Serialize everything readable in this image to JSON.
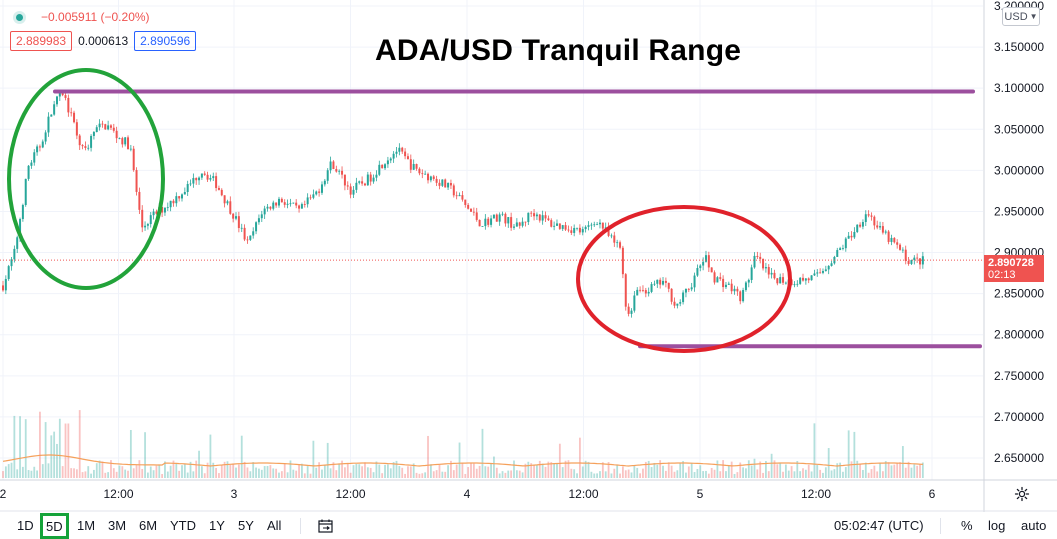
{
  "title": "ADA/USD Tranquil Range",
  "legend": {
    "change": "−0.005911 (−0.20%)",
    "sell": "2.889983",
    "spread": "0.000613",
    "buy": "2.890596"
  },
  "currency": "USD",
  "last_price": {
    "value": "2.890728",
    "countdown": "02:13"
  },
  "colors": {
    "up": "#26a69a",
    "down": "#ef5350",
    "range_line": "#9c4f9e",
    "green_circle": "#22a33a",
    "red_circle": "#e0222b",
    "volume_ma": "#f5a05a"
  },
  "chart_data": {
    "type": "candlestick",
    "title": "ADA/USD Tranquil Range",
    "y_ticks": [
      "3.200000",
      "3.150000",
      "3.100000",
      "3.050000",
      "3.000000",
      "2.950000",
      "2.900000",
      "2.850000",
      "2.800000",
      "2.750000",
      "2.700000",
      "2.650000"
    ],
    "ylim": [
      2.632,
      3.205
    ],
    "x_ticks": [
      "2",
      "12:00",
      "3",
      "12:00",
      "4",
      "12:00",
      "5",
      "12:00",
      "6"
    ],
    "grid": true,
    "last_price": 2.890728,
    "price_path": [
      [
        0.0,
        2.86
      ],
      [
        0.05,
        2.9
      ],
      [
        0.11,
        3.005
      ],
      [
        0.16,
        3.03
      ],
      [
        0.22,
        3.08
      ],
      [
        0.26,
        3.095
      ],
      [
        0.3,
        3.06
      ],
      [
        0.35,
        3.02
      ],
      [
        0.4,
        3.05
      ],
      [
        0.45,
        3.055
      ],
      [
        0.5,
        3.04
      ],
      [
        0.55,
        3.03
      ],
      [
        0.6,
        2.93
      ],
      [
        0.65,
        2.945
      ],
      [
        0.72,
        2.96
      ],
      [
        0.8,
        2.98
      ],
      [
        0.86,
        3.0
      ],
      [
        0.92,
        2.985
      ],
      [
        1.0,
        2.945
      ],
      [
        1.06,
        2.91
      ],
      [
        1.12,
        2.95
      ],
      [
        1.2,
        2.965
      ],
      [
        1.28,
        2.95
      ],
      [
        1.36,
        2.975
      ],
      [
        1.42,
        3.01
      ],
      [
        1.5,
        2.975
      ],
      [
        1.58,
        2.99
      ],
      [
        1.64,
        3.01
      ],
      [
        1.7,
        3.025
      ],
      [
        1.78,
        3.0
      ],
      [
        1.86,
        2.99
      ],
      [
        1.94,
        2.975
      ],
      [
        2.0,
        2.955
      ],
      [
        2.06,
        2.935
      ],
      [
        2.14,
        2.945
      ],
      [
        2.22,
        2.93
      ],
      [
        2.28,
        2.95
      ],
      [
        2.36,
        2.935
      ],
      [
        2.44,
        2.93
      ],
      [
        2.5,
        2.925
      ],
      [
        2.56,
        2.94
      ],
      [
        2.62,
        2.915
      ],
      [
        2.66,
        2.905
      ],
      [
        2.68,
        2.84
      ],
      [
        2.7,
        2.82
      ],
      [
        2.72,
        2.855
      ],
      [
        2.78,
        2.855
      ],
      [
        2.84,
        2.865
      ],
      [
        2.9,
        2.835
      ],
      [
        2.96,
        2.86
      ],
      [
        3.02,
        2.895
      ],
      [
        3.06,
        2.87
      ],
      [
        3.12,
        2.86
      ],
      [
        3.18,
        2.845
      ],
      [
        3.24,
        2.895
      ],
      [
        3.3,
        2.87
      ],
      [
        3.4,
        2.865
      ],
      [
        3.5,
        2.87
      ],
      [
        3.58,
        2.895
      ],
      [
        3.66,
        2.925
      ],
      [
        3.72,
        2.95
      ],
      [
        3.78,
        2.925
      ],
      [
        3.84,
        2.91
      ],
      [
        3.9,
        2.89
      ],
      [
        3.96,
        2.89
      ]
    ],
    "annotations": {
      "resistance": 3.096,
      "support": 2.786
    }
  },
  "timeframes": [
    "1D",
    "5D",
    "1M",
    "3M",
    "6M",
    "YTD",
    "1Y",
    "5Y",
    "All"
  ],
  "active_timeframe": "5D",
  "clock": "05:02:47 (UTC)",
  "options": [
    "%",
    "log",
    "auto"
  ]
}
